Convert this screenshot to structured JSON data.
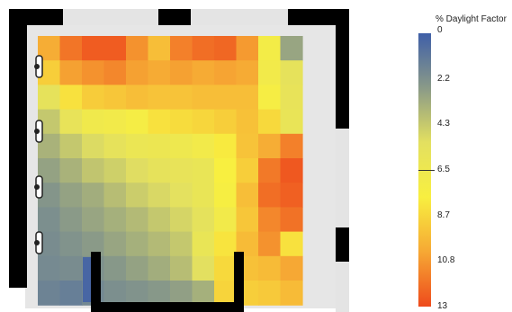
{
  "chart_data": {
    "type": "heatmap",
    "title": "",
    "legend_title": "% Daylight Factor",
    "scale": {
      "min": 0,
      "max": 13,
      "ticks": [
        "0",
        "2.2",
        "4.3",
        "6.5",
        "8.7",
        "10.8",
        "13"
      ]
    },
    "colorscale": [
      "#3f5fa8",
      "#8a9a88",
      "#e3e060",
      "#f8ef40",
      "#f6a834",
      "#ee4a1c"
    ],
    "grid": [
      [
        10.2,
        11.8,
        12.5,
        12.5,
        11.0,
        9.6,
        11.5,
        12.0,
        12.2,
        10.8,
        7.2,
        3.0
      ],
      [
        9.0,
        10.6,
        11.0,
        11.3,
        10.6,
        10.3,
        10.6,
        10.3,
        10.5,
        10.3,
        7.0,
        5.6
      ],
      [
        5.6,
        8.3,
        9.1,
        9.3,
        9.6,
        9.4,
        9.4,
        9.6,
        9.6,
        9.6,
        7.5,
        5.8
      ],
      [
        4.3,
        5.8,
        6.8,
        7.0,
        7.4,
        8.3,
        8.5,
        8.7,
        9.0,
        9.5,
        8.6,
        5.9
      ],
      [
        3.5,
        4.3,
        5.0,
        5.6,
        6.2,
        6.3,
        6.6,
        7.0,
        8.0,
        9.4,
        10.2,
        11.5
      ],
      [
        2.9,
        3.5,
        4.2,
        4.6,
        5.1,
        5.6,
        5.8,
        6.0,
        7.8,
        9.0,
        11.7,
        12.6
      ],
      [
        2.4,
        2.9,
        3.3,
        3.9,
        4.5,
        4.9,
        5.3,
        6.0,
        7.6,
        9.6,
        12.0,
        12.4
      ],
      [
        2.1,
        2.6,
        3.0,
        3.4,
        3.8,
        4.3,
        4.8,
        5.5,
        7.0,
        9.3,
        11.3,
        11.9
      ],
      [
        2.0,
        2.3,
        2.6,
        3.0,
        3.4,
        3.8,
        4.3,
        6.0,
        8.2,
        9.7,
        11.0,
        8.3
      ],
      [
        1.9,
        2.0,
        2.2,
        2.5,
        2.9,
        3.3,
        3.9,
        5.2,
        8.6,
        9.5,
        9.7,
        10.4
      ],
      [
        1.6,
        1.4,
        1.8,
        2.1,
        2.3,
        2.5,
        2.8,
        3.4,
        8.8,
        9.0,
        9.2,
        9.7
      ]
    ]
  }
}
